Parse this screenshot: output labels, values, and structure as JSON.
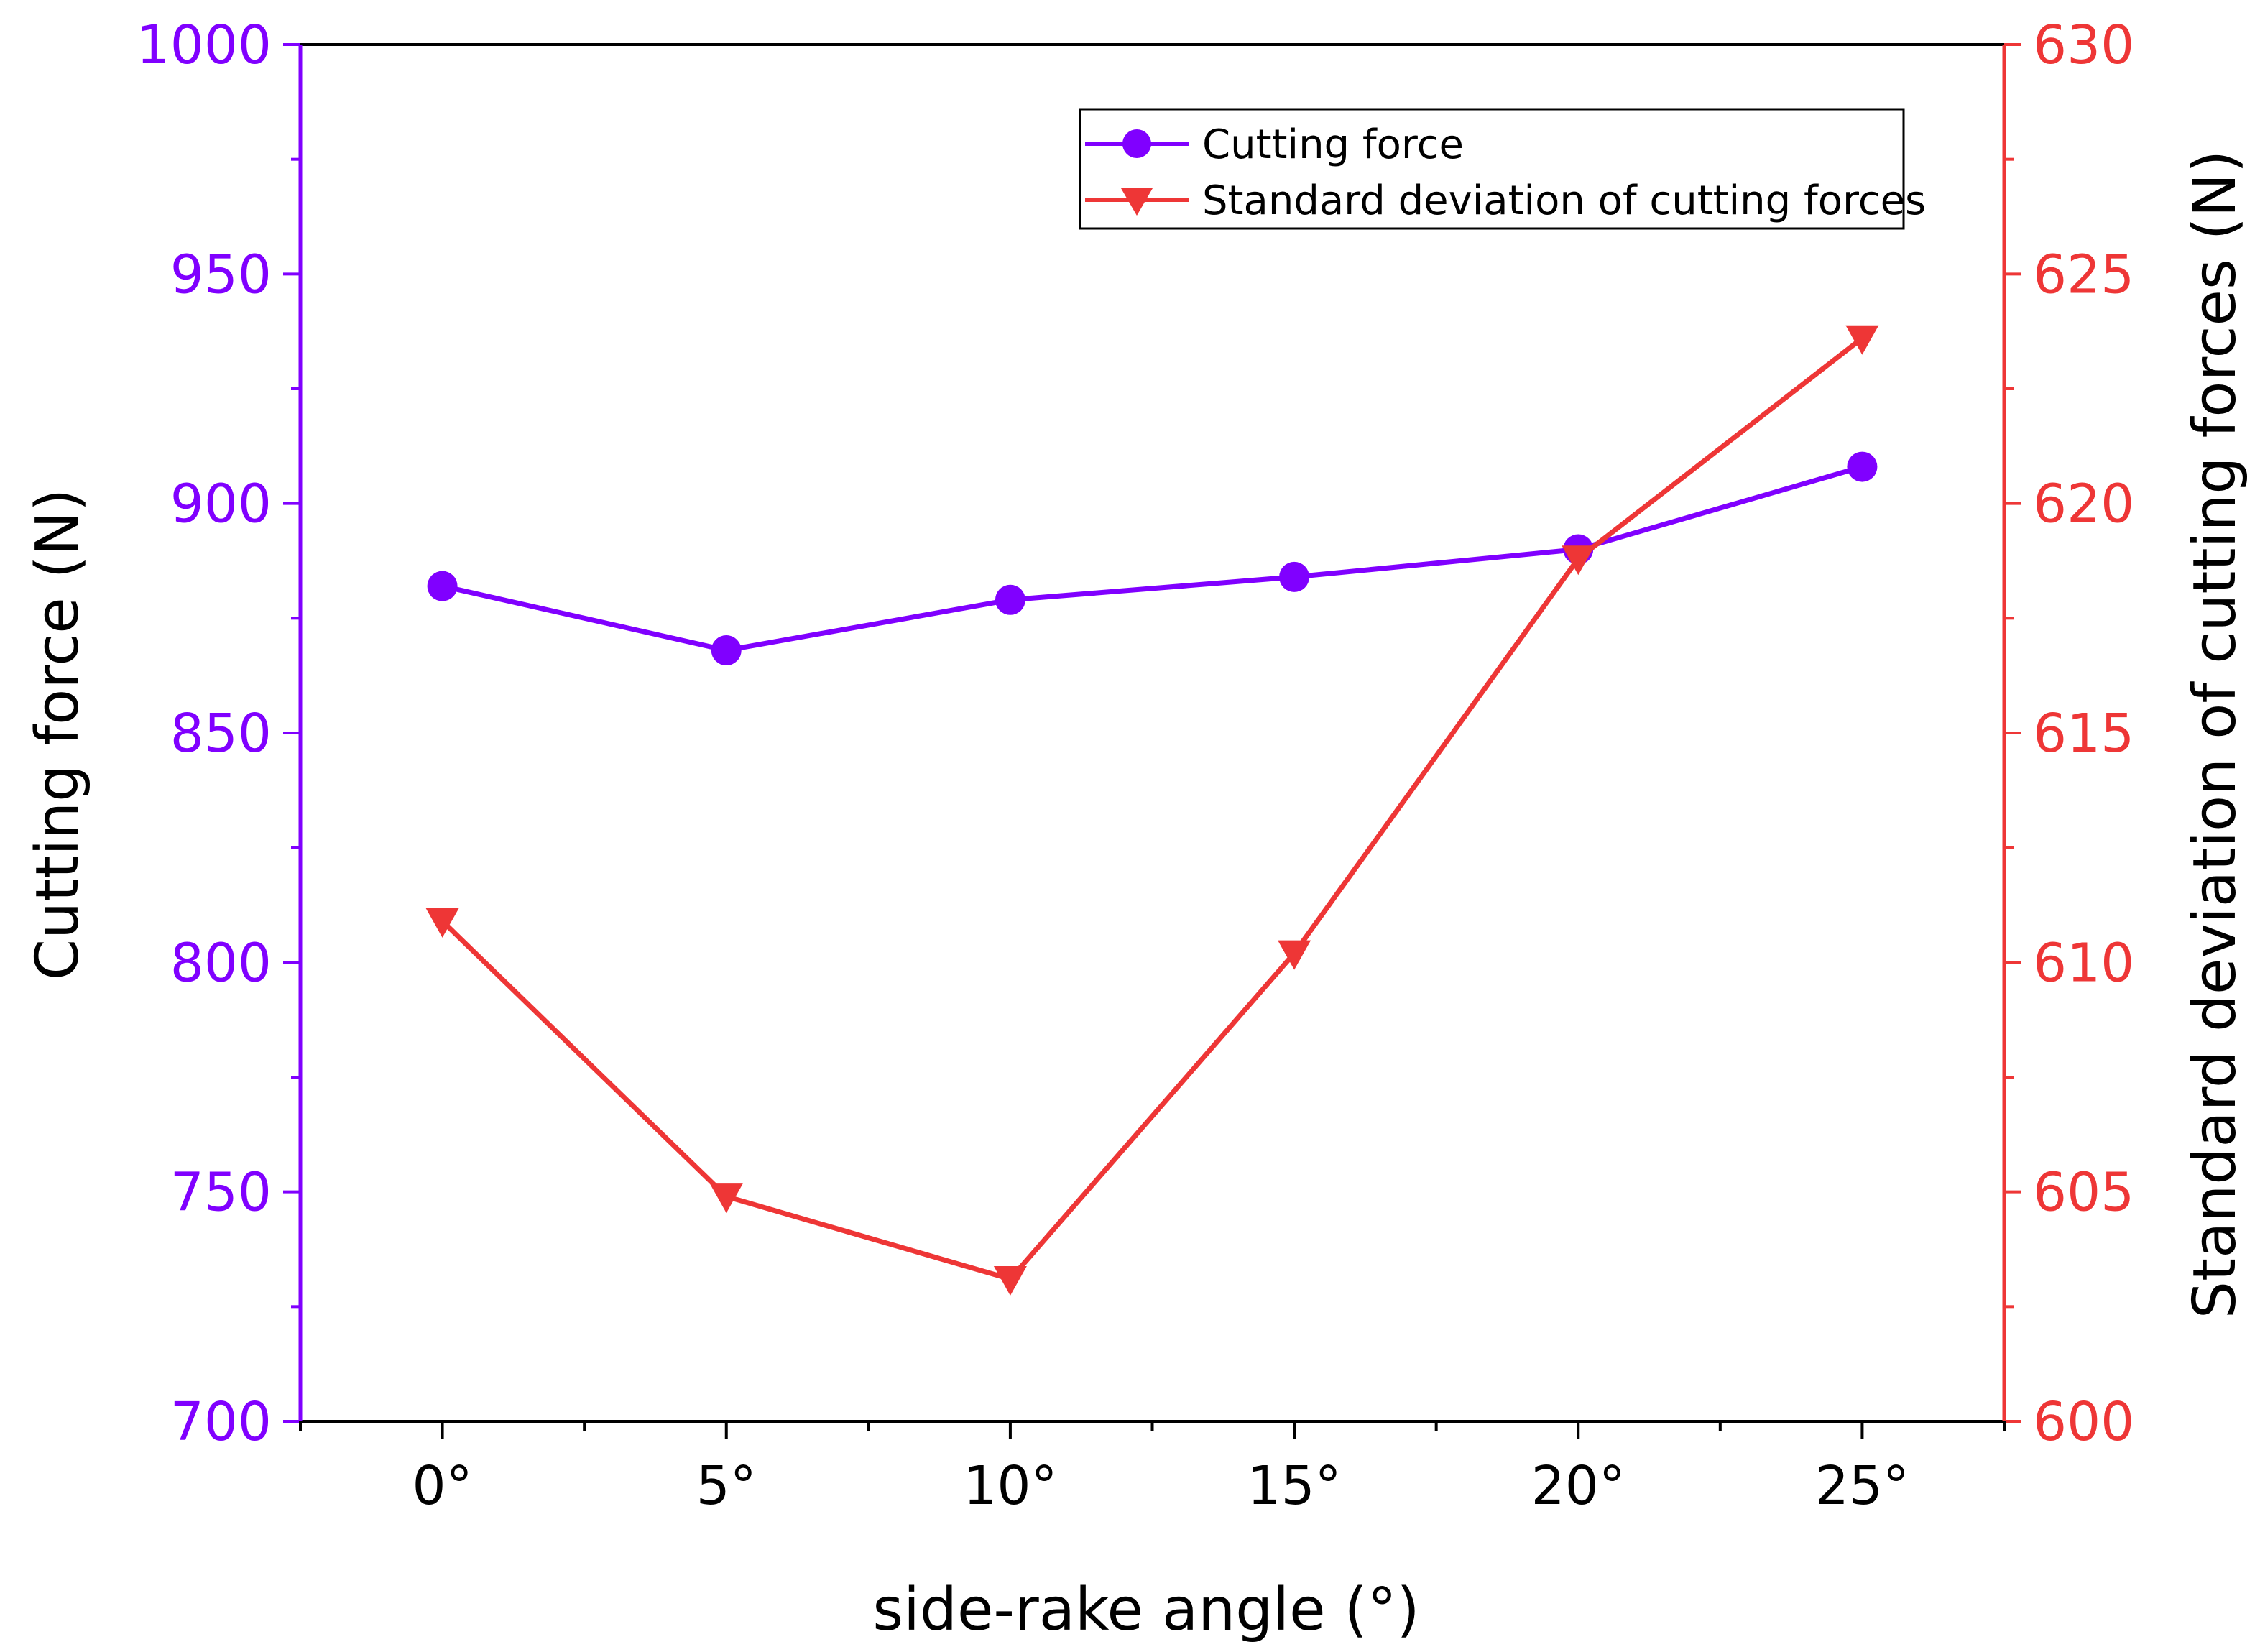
{
  "chart_data": {
    "type": "line",
    "title": "",
    "xlabel": "side-rake angle (°)",
    "ylabel_left": "Cutting force (N)",
    "ylabel_right": "Standard deviation of cutting forces (N)",
    "x": [
      0,
      5,
      10,
      15,
      20,
      25
    ],
    "x_tick_labels": [
      "0°",
      "5°",
      "10°",
      "15°",
      "20°",
      "25°"
    ],
    "xlim": [
      -2.5,
      27.5
    ],
    "ylim_left": [
      700,
      1000
    ],
    "ylim_right": [
      600,
      630
    ],
    "y_ticks_left": [
      "700",
      "750",
      "800",
      "850",
      "900",
      "950",
      "1000"
    ],
    "y_ticks_right": [
      "600",
      "605",
      "610",
      "615",
      "620",
      "625",
      "630"
    ],
    "grid": false,
    "legend_position": "top-right",
    "series": [
      {
        "name": "Cutting force",
        "axis": "left",
        "marker": "circle",
        "color": "#8000ff",
        "values": [
          882,
          868,
          879,
          884,
          890,
          908
        ]
      },
      {
        "name": "Standard deviation of cutting forces",
        "axis": "right",
        "marker": "triangle-down",
        "color": "#ee3636",
        "values": [
          610.9,
          604.9,
          603.1,
          610.2,
          618.8,
          623.6
        ]
      }
    ]
  }
}
